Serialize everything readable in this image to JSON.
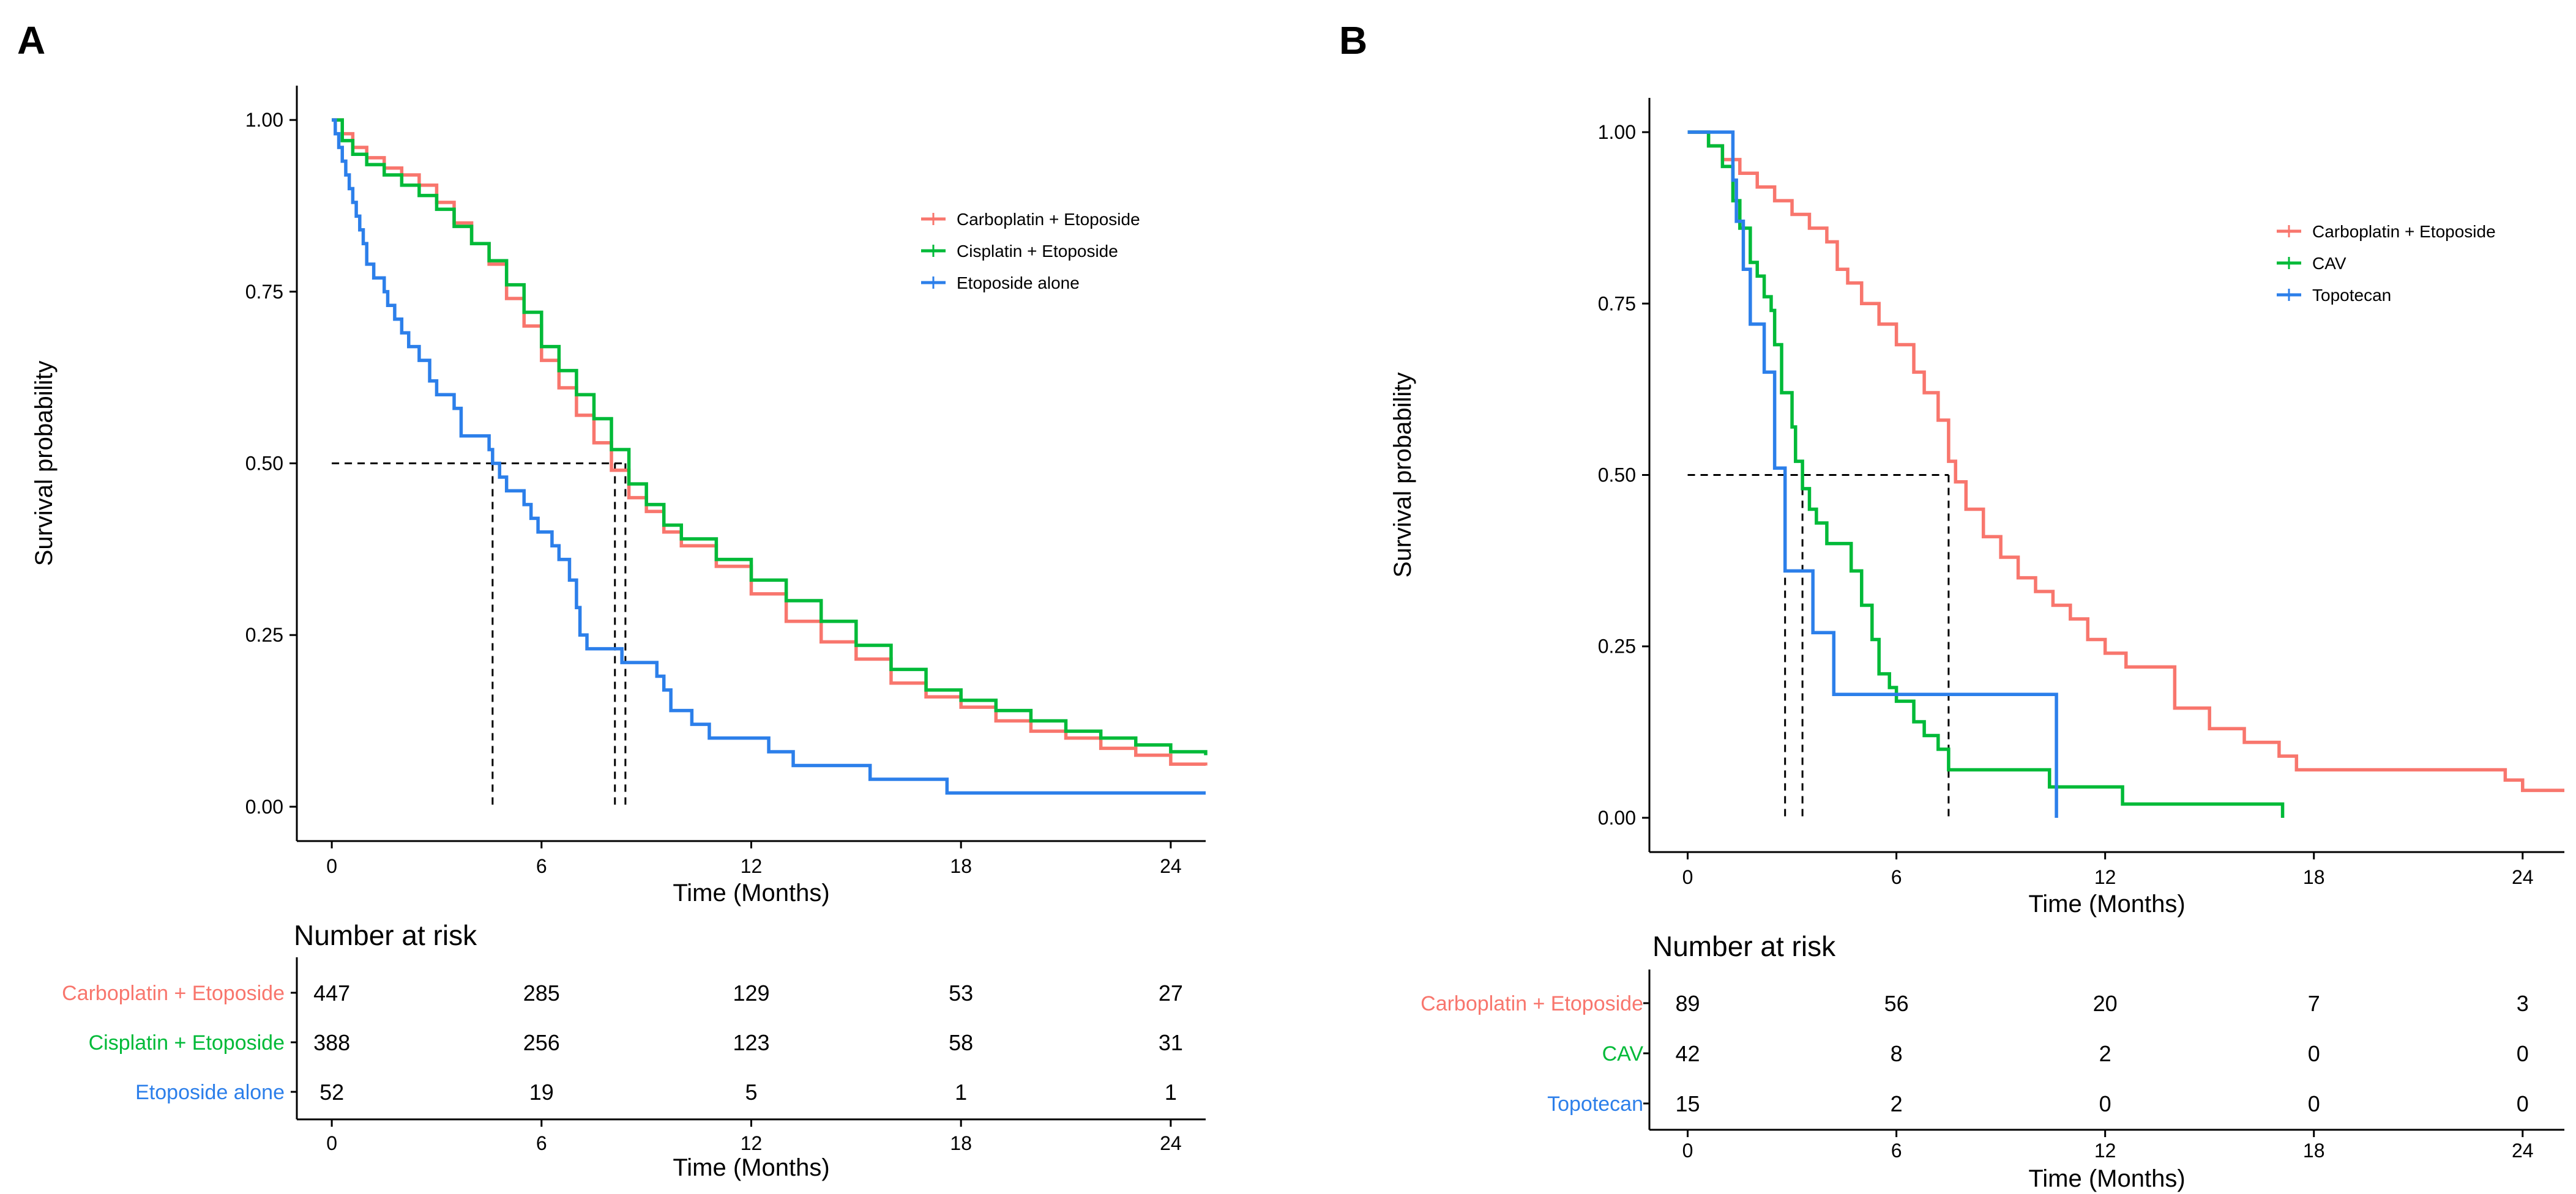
{
  "panels": [
    {
      "letter": "A",
      "type": "line",
      "chart_data": {
        "type": "line",
        "subtype": "kaplan-meier",
        "xlabel": "Time (Months)",
        "ylabel": "Survival probability",
        "xlim": [
          -1,
          25
        ],
        "ylim": [
          -0.05,
          1.05
        ],
        "xticks": [
          0,
          6,
          12,
          18,
          24
        ],
        "xtick_labels": [
          "0",
          "6",
          "12",
          "18",
          "24"
        ],
        "yticks": [
          0,
          0.25,
          0.5,
          0.75,
          1
        ],
        "ytick_labels": [
          "0.00",
          "0.25",
          "0.50",
          "0.75",
          "1.00"
        ],
        "legend_position": "top-right",
        "series": [
          {
            "name": "Carboplatin + Etoposide",
            "color": "#F8766D",
            "steps": [
              [
                0,
                1
              ],
              [
                0.3,
                0.98
              ],
              [
                0.6,
                0.96
              ],
              [
                1,
                0.945
              ],
              [
                1.5,
                0.93
              ],
              [
                2,
                0.92
              ],
              [
                2.5,
                0.905
              ],
              [
                3,
                0.88
              ],
              [
                3.5,
                0.85
              ],
              [
                4,
                0.82
              ],
              [
                4.5,
                0.79
              ],
              [
                5,
                0.74
              ],
              [
                5.5,
                0.7
              ],
              [
                6,
                0.65
              ],
              [
                6.5,
                0.61
              ],
              [
                7,
                0.57
              ],
              [
                7.5,
                0.53
              ],
              [
                8,
                0.49
              ],
              [
                8.5,
                0.45
              ],
              [
                9,
                0.43
              ],
              [
                9.5,
                0.4
              ],
              [
                10,
                0.38
              ],
              [
                11,
                0.35
              ],
              [
                12,
                0.31
              ],
              [
                13,
                0.27
              ],
              [
                14,
                0.24
              ],
              [
                15,
                0.215
              ],
              [
                16,
                0.18
              ],
              [
                17,
                0.16
              ],
              [
                18,
                0.145
              ],
              [
                19,
                0.125
              ],
              [
                20,
                0.11
              ],
              [
                21,
                0.1
              ],
              [
                22,
                0.085
              ],
              [
                23,
                0.075
              ],
              [
                24,
                0.062
              ],
              [
                25,
                0.06
              ]
            ],
            "median": 8.1
          },
          {
            "name": "Cisplatin + Etoposide",
            "color": "#00BA38",
            "steps": [
              [
                0,
                1
              ],
              [
                0.3,
                0.97
              ],
              [
                0.6,
                0.95
              ],
              [
                1,
                0.935
              ],
              [
                1.5,
                0.92
              ],
              [
                2,
                0.905
              ],
              [
                2.5,
                0.89
              ],
              [
                3,
                0.87
              ],
              [
                3.5,
                0.845
              ],
              [
                4,
                0.82
              ],
              [
                4.5,
                0.795
              ],
              [
                5,
                0.76
              ],
              [
                5.5,
                0.72
              ],
              [
                6,
                0.67
              ],
              [
                6.5,
                0.635
              ],
              [
                7,
                0.6
              ],
              [
                7.5,
                0.565
              ],
              [
                8,
                0.52
              ],
              [
                8.5,
                0.47
              ],
              [
                9,
                0.44
              ],
              [
                9.5,
                0.41
              ],
              [
                10,
                0.39
              ],
              [
                11,
                0.36
              ],
              [
                12,
                0.33
              ],
              [
                13,
                0.3
              ],
              [
                14,
                0.27
              ],
              [
                15,
                0.235
              ],
              [
                16,
                0.2
              ],
              [
                17,
                0.17
              ],
              [
                18,
                0.155
              ],
              [
                19,
                0.14
              ],
              [
                20,
                0.125
              ],
              [
                21,
                0.11
              ],
              [
                22,
                0.1
              ],
              [
                23,
                0.09
              ],
              [
                24,
                0.08
              ],
              [
                25,
                0.075
              ]
            ],
            "median": 8.4
          },
          {
            "name": "Etoposide alone",
            "color": "#2C7FEA",
            "steps": [
              [
                0,
                1
              ],
              [
                0.1,
                0.98
              ],
              [
                0.2,
                0.96
              ],
              [
                0.3,
                0.94
              ],
              [
                0.4,
                0.92
              ],
              [
                0.5,
                0.9
              ],
              [
                0.6,
                0.88
              ],
              [
                0.7,
                0.86
              ],
              [
                0.8,
                0.84
              ],
              [
                0.9,
                0.82
              ],
              [
                1,
                0.79
              ],
              [
                1.2,
                0.77
              ],
              [
                1.5,
                0.75
              ],
              [
                1.6,
                0.73
              ],
              [
                1.8,
                0.71
              ],
              [
                2,
                0.69
              ],
              [
                2.2,
                0.67
              ],
              [
                2.5,
                0.65
              ],
              [
                2.8,
                0.62
              ],
              [
                3,
                0.6
              ],
              [
                3.5,
                0.58
              ],
              [
                3.7,
                0.54
              ],
              [
                4.5,
                0.52
              ],
              [
                4.6,
                0.5
              ],
              [
                4.8,
                0.48
              ],
              [
                5,
                0.46
              ],
              [
                5.5,
                0.44
              ],
              [
                5.7,
                0.42
              ],
              [
                5.9,
                0.4
              ],
              [
                6.3,
                0.38
              ],
              [
                6.5,
                0.36
              ],
              [
                6.8,
                0.33
              ],
              [
                7,
                0.29
              ],
              [
                7.1,
                0.25
              ],
              [
                7.3,
                0.23
              ],
              [
                8.3,
                0.21
              ],
              [
                9.3,
                0.19
              ],
              [
                9.5,
                0.17
              ],
              [
                9.7,
                0.14
              ],
              [
                10.3,
                0.12
              ],
              [
                10.8,
                0.1
              ],
              [
                12.5,
                0.08
              ],
              [
                13.2,
                0.06
              ],
              [
                15.4,
                0.04
              ],
              [
                17.6,
                0.02
              ],
              [
                25,
                0.02
              ]
            ],
            "median": 4.6
          }
        ]
      },
      "risk_table": {
        "title": "Number at risk",
        "xlabel": "Time (Months)",
        "times": [
          0,
          6,
          12,
          18,
          24
        ],
        "time_labels": [
          "0",
          "6",
          "12",
          "18",
          "24"
        ],
        "rows": [
          {
            "label": "Carboplatin + Etoposide",
            "color": "#F8766D",
            "values": [
              "447",
              "285",
              "129",
              "53",
              "27"
            ]
          },
          {
            "label": "Cisplatin + Etoposide",
            "color": "#00BA38",
            "values": [
              "388",
              "256",
              "123",
              "58",
              "31"
            ]
          },
          {
            "label": "Etoposide alone",
            "color": "#2C7FEA",
            "values": [
              "52",
              "19",
              "5",
              "1",
              "1"
            ]
          }
        ]
      }
    },
    {
      "letter": "B",
      "type": "line",
      "chart_data": {
        "type": "line",
        "subtype": "kaplan-meier",
        "xlabel": "Time (Months)",
        "ylabel": "Survival probability",
        "xlim": [
          -1.1,
          25.2
        ],
        "ylim": [
          -0.05,
          1.05
        ],
        "xticks": [
          0,
          6,
          12,
          18,
          24
        ],
        "xtick_labels": [
          "0",
          "6",
          "12",
          "18",
          "24"
        ],
        "yticks": [
          0,
          0.25,
          0.5,
          0.75,
          1
        ],
        "ytick_labels": [
          "0.00",
          "0.25",
          "0.50",
          "0.75",
          "1.00"
        ],
        "legend_position": "top-right",
        "series": [
          {
            "name": "Carboplatin + Etoposide",
            "color": "#F8766D",
            "steps": [
              [
                0,
                1
              ],
              [
                0.6,
                0.98
              ],
              [
                1,
                0.96
              ],
              [
                1.5,
                0.94
              ],
              [
                2,
                0.92
              ],
              [
                2.5,
                0.9
              ],
              [
                3,
                0.88
              ],
              [
                3.5,
                0.86
              ],
              [
                4,
                0.84
              ],
              [
                4.3,
                0.8
              ],
              [
                4.6,
                0.78
              ],
              [
                5,
                0.75
              ],
              [
                5.5,
                0.72
              ],
              [
                6,
                0.69
              ],
              [
                6.5,
                0.65
              ],
              [
                6.8,
                0.62
              ],
              [
                7.2,
                0.58
              ],
              [
                7.5,
                0.52
              ],
              [
                7.7,
                0.49
              ],
              [
                8,
                0.45
              ],
              [
                8.5,
                0.41
              ],
              [
                9,
                0.38
              ],
              [
                9.5,
                0.35
              ],
              [
                10,
                0.33
              ],
              [
                10.5,
                0.31
              ],
              [
                11,
                0.29
              ],
              [
                11.5,
                0.26
              ],
              [
                12,
                0.24
              ],
              [
                12.6,
                0.22
              ],
              [
                14,
                0.16
              ],
              [
                15,
                0.13
              ],
              [
                16,
                0.11
              ],
              [
                17,
                0.09
              ],
              [
                17.5,
                0.07
              ],
              [
                23.5,
                0.055
              ],
              [
                24,
                0.04
              ],
              [
                25.2,
                0.04
              ]
            ],
            "median": 7.5
          },
          {
            "name": "CAV",
            "color": "#00BA38",
            "steps": [
              [
                0,
                1
              ],
              [
                0.6,
                0.98
              ],
              [
                1,
                0.95
              ],
              [
                1.3,
                0.9
              ],
              [
                1.5,
                0.86
              ],
              [
                1.8,
                0.81
              ],
              [
                2,
                0.79
              ],
              [
                2.2,
                0.76
              ],
              [
                2.4,
                0.74
              ],
              [
                2.5,
                0.69
              ],
              [
                2.7,
                0.62
              ],
              [
                3,
                0.57
              ],
              [
                3.1,
                0.52
              ],
              [
                3.3,
                0.48
              ],
              [
                3.5,
                0.45
              ],
              [
                3.7,
                0.43
              ],
              [
                4,
                0.4
              ],
              [
                4.7,
                0.36
              ],
              [
                5,
                0.31
              ],
              [
                5.3,
                0.26
              ],
              [
                5.5,
                0.21
              ],
              [
                5.8,
                0.19
              ],
              [
                6,
                0.17
              ],
              [
                6.5,
                0.14
              ],
              [
                6.8,
                0.12
              ],
              [
                7.2,
                0.1
              ],
              [
                7.5,
                0.07
              ],
              [
                10.4,
                0.045
              ],
              [
                12.5,
                0.02
              ],
              [
                17.1,
                0
              ]
            ],
            "median": 3.3
          },
          {
            "name": "Topotecan",
            "color": "#2C7FEA",
            "steps": [
              [
                0,
                1
              ],
              [
                1.3,
                0.93
              ],
              [
                1.4,
                0.87
              ],
              [
                1.6,
                0.8
              ],
              [
                1.8,
                0.72
              ],
              [
                2.2,
                0.65
              ],
              [
                2.5,
                0.51
              ],
              [
                2.8,
                0.36
              ],
              [
                3.6,
                0.27
              ],
              [
                4.2,
                0.18
              ],
              [
                10.5,
                0.18
              ],
              [
                10.6,
                0
              ]
            ],
            "median": 2.8
          }
        ]
      },
      "risk_table": {
        "title": "Number at risk",
        "xlabel": "Time (Months)",
        "times": [
          0,
          6,
          12,
          18,
          24
        ],
        "time_labels": [
          "0",
          "6",
          "12",
          "18",
          "24"
        ],
        "rows": [
          {
            "label": "Carboplatin + Etoposide",
            "color": "#F8766D",
            "values": [
              "89",
              "56",
              "20",
              "7",
              "3"
            ]
          },
          {
            "label": "CAV",
            "color": "#00BA38",
            "values": [
              "42",
              "8",
              "2",
              "0",
              "0"
            ]
          },
          {
            "label": "Topotecan",
            "color": "#2C7FEA",
            "values": [
              "15",
              "2",
              "0",
              "0",
              "0"
            ]
          }
        ]
      }
    }
  ]
}
